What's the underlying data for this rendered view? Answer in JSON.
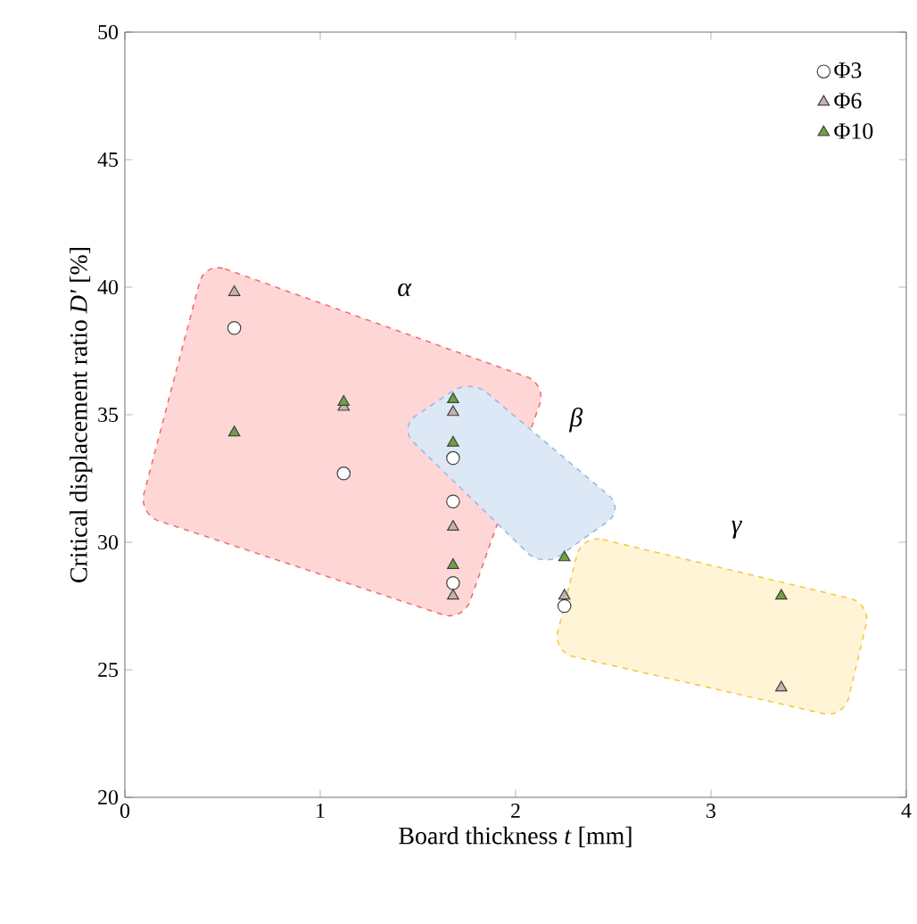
{
  "chart_data": {
    "type": "scatter",
    "xlabel": "Board thickness *t* [mm]",
    "ylabel": "Critical displacement ratio *D'* [%]",
    "xlim": [
      0,
      4
    ],
    "ylim": [
      20,
      50
    ],
    "xticks": [
      0,
      1,
      2,
      3,
      4
    ],
    "yticks": [
      20,
      25,
      30,
      35,
      40,
      45,
      50
    ],
    "legend": "top right",
    "grid": false,
    "series": [
      {
        "name": "Φ3",
        "color": "#ffffff",
        "marker": "circle",
        "x": [
          0.56,
          1.12,
          1.68,
          1.68,
          1.68,
          2.25
        ],
        "values": [
          38.4,
          32.7,
          33.3,
          31.6,
          28.4,
          27.5
        ]
      },
      {
        "name": "Φ6",
        "color": "#c9b1b1",
        "marker": "triangle",
        "x": [
          0.56,
          1.12,
          1.68,
          1.68,
          1.68,
          2.25,
          3.36
        ],
        "values": [
          39.8,
          35.3,
          35.1,
          30.6,
          27.9,
          27.9,
          24.3
        ]
      },
      {
        "name": "Φ10",
        "color": "#70a044",
        "marker": "triangle",
        "x": [
          0.56,
          1.12,
          1.68,
          1.68,
          1.68,
          2.25,
          3.36
        ],
        "values": [
          34.3,
          35.5,
          35.6,
          33.9,
          29.1,
          29.4,
          27.9
        ]
      }
    ],
    "annotations": [
      "α",
      "β",
      "γ"
    ]
  }
}
